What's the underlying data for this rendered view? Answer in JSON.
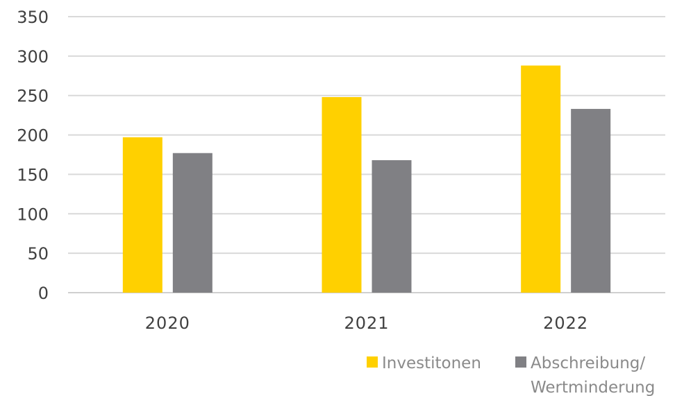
{
  "chart_data": {
    "type": "bar",
    "categories": [
      "2020",
      "2021",
      "2022"
    ],
    "series": [
      {
        "name": "Investitonen",
        "color": "#ffd000",
        "values": [
          197,
          248,
          288
        ]
      },
      {
        "name": "Abschreibung/ Wertminderung",
        "name_lines": [
          "Abschreibung/",
          "Wertminderung"
        ],
        "color": "#808084",
        "values": [
          177,
          168,
          233
        ]
      }
    ],
    "yticks": [
      "0",
      "50",
      "100",
      "150",
      "200",
      "250",
      "300",
      "350"
    ],
    "ylim": [
      0,
      350
    ],
    "grid": true,
    "legend_position": "bottom-right"
  }
}
